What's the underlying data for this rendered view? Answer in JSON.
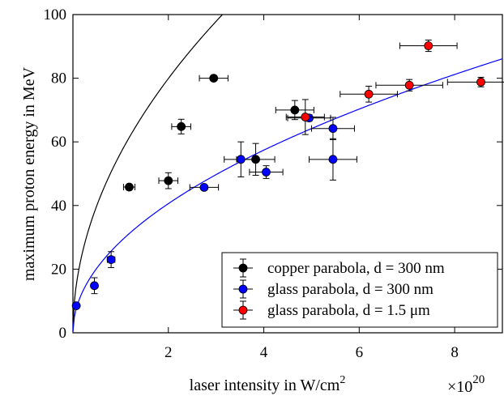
{
  "chart_data": {
    "type": "scatter",
    "xlabel": "laser intensity in W/cm",
    "xlabel_sup": "2",
    "x_multiplier_base": "×10",
    "x_multiplier_exp": "20",
    "ylabel": "maximum proton energy in MeV",
    "xlim": [
      0,
      9
    ],
    "ylim": [
      0,
      100
    ],
    "xticks": [
      2,
      4,
      6,
      8
    ],
    "xtick_labels": [
      "2",
      "4",
      "6",
      "8"
    ],
    "yticks": [
      0,
      20,
      40,
      60,
      80,
      100
    ],
    "ytick_labels": [
      "0",
      "20",
      "40",
      "60",
      "80",
      "100"
    ],
    "grid": false,
    "legend_position": "bottom-right",
    "series": [
      {
        "name": "copper parabola, d = 300 nm",
        "color": "#000000",
        "points": [
          {
            "x": 1.18,
            "y": 45.8,
            "xerr": 0.12,
            "yerr": 0.8
          },
          {
            "x": 2.0,
            "y": 47.8,
            "xerr": 0.2,
            "yerr": 2.5
          },
          {
            "x": 2.27,
            "y": 64.8,
            "xerr": 0.2,
            "yerr": 2.3
          },
          {
            "x": 2.95,
            "y": 80.0,
            "xerr": 0.3,
            "yerr": 0.5
          },
          {
            "x": 3.83,
            "y": 54.5,
            "xerr": 0.4,
            "yerr": 5.0
          },
          {
            "x": 4.65,
            "y": 70.0,
            "xerr": 0.4,
            "yerr": 3.0
          }
        ]
      },
      {
        "name": "glass parabola, d = 300 nm",
        "color": "#0000ff",
        "points": [
          {
            "x": 0.07,
            "y": 8.5,
            "xerr": 0.05,
            "yerr": 0.8
          },
          {
            "x": 0.45,
            "y": 14.8,
            "xerr": 0.05,
            "yerr": 2.5
          },
          {
            "x": 0.8,
            "y": 23.0,
            "xerr": 0.08,
            "yerr": 2.5
          },
          {
            "x": 2.75,
            "y": 45.7,
            "xerr": 0.3,
            "yerr": 0.8
          },
          {
            "x": 3.52,
            "y": 54.5,
            "xerr": 0.35,
            "yerr": 5.5
          },
          {
            "x": 4.05,
            "y": 50.5,
            "xerr": 0.35,
            "yerr": 2.0
          },
          {
            "x": 4.95,
            "y": 67.5,
            "xerr": 0.45,
            "yerr": 1.0
          },
          {
            "x": 5.45,
            "y": 64.2,
            "xerr": 0.45,
            "yerr": 3.5
          },
          {
            "x": 5.45,
            "y": 54.5,
            "xerr": 0.5,
            "yerr": 6.5
          }
        ]
      },
      {
        "name": "glass parabola, d = 1.5 μm",
        "color": "#ff0000",
        "points": [
          {
            "x": 4.87,
            "y": 67.8,
            "xerr": 0.4,
            "yerr": 5.5
          },
          {
            "x": 6.2,
            "y": 75.0,
            "xerr": 0.6,
            "yerr": 2.5
          },
          {
            "x": 7.05,
            "y": 77.8,
            "xerr": 0.7,
            "yerr": 1.8
          },
          {
            "x": 7.45,
            "y": 90.2,
            "xerr": 0.6,
            "yerr": 1.8
          },
          {
            "x": 8.55,
            "y": 78.8,
            "xerr": 0.7,
            "yerr": 1.5
          }
        ]
      }
    ],
    "fit_curves": [
      {
        "color": "#000000",
        "coefficient": 56.5,
        "exponent": 0.5
      },
      {
        "color": "#0000ff",
        "coefficient": 28.7,
        "exponent": 0.5
      }
    ]
  }
}
